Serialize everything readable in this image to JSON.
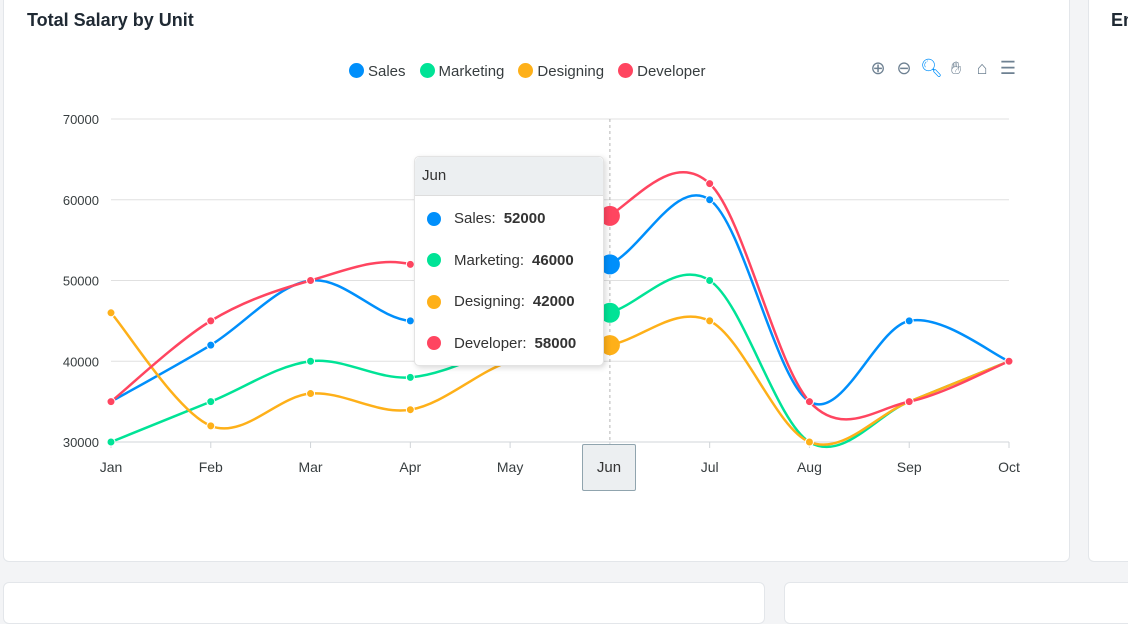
{
  "card_title": "Total Salary by Unit",
  "right_card_title": "Em",
  "toolbar": {
    "icons": [
      "zoom-in-icon",
      "zoom-out-icon",
      "selection-zoom-icon",
      "pan-hand-icon",
      "home-reset-icon",
      "menu-icon"
    ]
  },
  "tooltip": {
    "title": "Jun",
    "rows": [
      {
        "label": "Sales:",
        "value": "52000",
        "color": "#008ffb"
      },
      {
        "label": "Marketing:",
        "value": "46000",
        "color": "#00e396"
      },
      {
        "label": "Designing:",
        "value": "42000",
        "color": "#feb019"
      },
      {
        "label": "Developer:",
        "value": "58000",
        "color": "#ff4560"
      }
    ]
  },
  "xaxis_tooltip": "Jun",
  "chart_data": {
    "type": "line",
    "curve": "smooth",
    "categories": [
      "Jan",
      "Feb",
      "Mar",
      "Apr",
      "May",
      "Jun",
      "Jul",
      "Aug",
      "Sep",
      "Oct"
    ],
    "ylim": [
      30000,
      70000
    ],
    "yticks": [
      "70000",
      "60000",
      "50000",
      "40000",
      "30000"
    ],
    "grid": true,
    "legend": "top",
    "series": [
      {
        "name": "Sales",
        "color": "#008ffb",
        "values": [
          35000,
          42000,
          50000,
          45000,
          48000,
          52000,
          60000,
          35000,
          45000,
          40000
        ]
      },
      {
        "name": "Marketing",
        "color": "#00e396",
        "values": [
          30000,
          35000,
          40000,
          38000,
          42000,
          46000,
          50000,
          30000,
          35000,
          40000
        ]
      },
      {
        "name": "Designing",
        "color": "#feb019",
        "values": [
          46000,
          32000,
          36000,
          34000,
          40000,
          42000,
          45000,
          30000,
          35000,
          40000
        ]
      },
      {
        "name": "Developer",
        "color": "#ff4560",
        "values": [
          35000,
          45000,
          50000,
          52000,
          44000,
          58000,
          62000,
          35000,
          35000,
          40000
        ]
      }
    ],
    "highlighted_category": "Jun"
  }
}
